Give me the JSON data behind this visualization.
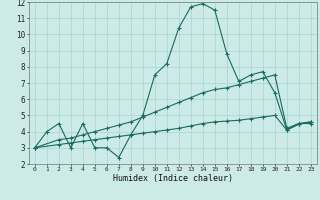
{
  "bg_color": "#cceae7",
  "grid_color": "#aad4d0",
  "line_color": "#1a6b5a",
  "x_min": 0,
  "x_max": 23,
  "y_min": 2,
  "y_max": 12,
  "xlabel": "Humidex (Indice chaleur)",
  "xtick_labels": [
    "0",
    "1",
    "2",
    "3",
    "4",
    "5",
    "6",
    "7",
    "8",
    "9",
    "10",
    "11",
    "12",
    "13",
    "14",
    "15",
    "16",
    "17",
    "18",
    "19",
    "20",
    "21",
    "22",
    "23"
  ],
  "ytick_labels": [
    "2",
    "3",
    "4",
    "5",
    "6",
    "7",
    "8",
    "9",
    "10",
    "11",
    "12"
  ],
  "curve1_x": [
    0,
    1,
    2,
    3,
    4,
    5,
    6,
    7,
    8,
    9,
    10,
    11,
    12,
    13,
    14,
    15,
    16,
    17,
    18,
    19,
    20,
    21,
    22,
    23
  ],
  "curve1_y": [
    3.0,
    4.0,
    4.5,
    3.0,
    4.5,
    3.0,
    3.0,
    2.4,
    3.8,
    5.0,
    7.5,
    8.2,
    10.4,
    11.7,
    11.9,
    11.5,
    8.8,
    7.1,
    7.5,
    7.7,
    6.4,
    4.1,
    4.5,
    4.5
  ],
  "curve2_x": [
    0,
    2,
    3,
    4,
    5,
    6,
    7,
    8,
    9,
    10,
    11,
    12,
    13,
    14,
    15,
    16,
    17,
    18,
    19,
    20,
    21,
    22,
    23
  ],
  "curve2_y": [
    3.0,
    3.5,
    3.6,
    3.8,
    4.0,
    4.2,
    4.4,
    4.6,
    4.9,
    5.2,
    5.5,
    5.8,
    6.1,
    6.4,
    6.6,
    6.7,
    6.9,
    7.1,
    7.3,
    7.5,
    4.2,
    4.5,
    4.6
  ],
  "curve3_x": [
    0,
    2,
    3,
    4,
    5,
    6,
    7,
    8,
    9,
    10,
    11,
    12,
    13,
    14,
    15,
    16,
    17,
    18,
    19,
    20,
    21,
    22,
    23
  ],
  "curve3_y": [
    3.0,
    3.2,
    3.3,
    3.4,
    3.5,
    3.6,
    3.7,
    3.8,
    3.9,
    4.0,
    4.1,
    4.2,
    4.35,
    4.5,
    4.6,
    4.65,
    4.7,
    4.8,
    4.9,
    5.0,
    4.1,
    4.45,
    4.6
  ]
}
